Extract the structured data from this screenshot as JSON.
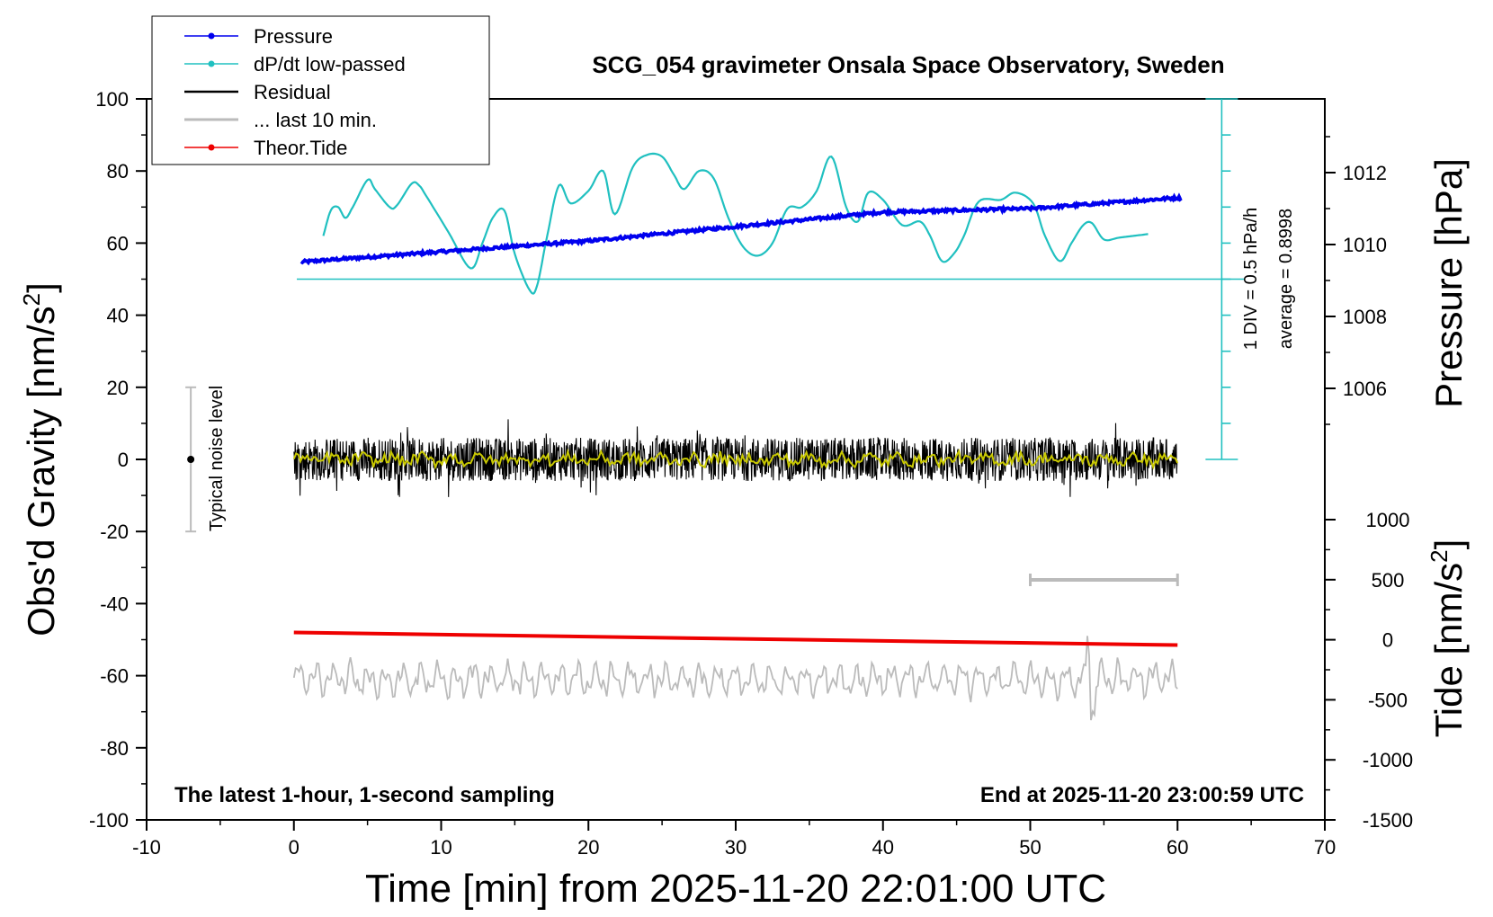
{
  "chart_data": {
    "type": "line",
    "title": "SCG_054 gravimeter Onsala Space Observatory, Sweden",
    "xlabel": "Time [min] from 2025-11-20 22:01:00 UTC",
    "ylabel_main": "Obs'd Gravity [nm/s",
    "ylabel_main_sup": "2",
    "ylabel_main_end": "]",
    "ylabel_pressure": "Pressure [hPa]",
    "ylabel_tide": "Tide [nm/s",
    "ylabel_tide_sup": "2",
    "ylabel_tide_end": "]",
    "xlim": [
      -10,
      70
    ],
    "ylim": [
      -100,
      100
    ],
    "pressure_ylim": [
      1004,
      1014
    ],
    "tide_ylim": [
      -1500,
      1000
    ],
    "x_ticks": [
      "-10",
      "0",
      "10",
      "20",
      "30",
      "40",
      "50",
      "60",
      "70"
    ],
    "y_ticks": [
      "-100",
      "-80",
      "-60",
      "-40",
      "-20",
      "0",
      "20",
      "40",
      "60",
      "80",
      "100"
    ],
    "pressure_ticks": [
      "1006",
      "1008",
      "1010",
      "1012"
    ],
    "tide_ticks": [
      "-1500",
      "-1000",
      "-500",
      "0",
      "500",
      "1000"
    ],
    "legend": [
      {
        "label": "Pressure",
        "color": "#0000ee",
        "marker": true
      },
      {
        "label": "dP/dt low-passed",
        "color": "#20c0c0",
        "marker": true
      },
      {
        "label": "Residual",
        "color": "#000000",
        "marker": false
      },
      {
        "label": "... last 10 min.",
        "color": "#bbbbbb",
        "marker": false
      },
      {
        "label": "Theor.Tide",
        "color": "#ee0000",
        "marker": true
      }
    ],
    "annotations": {
      "bottom_left": "The latest 1-hour, 1-second sampling",
      "bottom_right": "End at 2025-11-20 23:00:59 UTC",
      "noise": "Typical noise level",
      "dpdt_scale": "1 DIV = 0.5 hPa/h",
      "dpdt_average": "average = 0.8998"
    },
    "noise_bar": {
      "x": -7,
      "center": 0,
      "low": -20,
      "high": 20
    },
    "last10_bar": {
      "start": 50,
      "end": 60
    },
    "series": [
      {
        "name": "Pressure",
        "color": "#0000ee",
        "axis": "pressure",
        "x": [
          0,
          10,
          20,
          30,
          40,
          50,
          60
        ],
        "values": [
          1009.5,
          1009.8,
          1010.1,
          1010.5,
          1010.9,
          1011.0,
          1011.3
        ]
      },
      {
        "name": "dP/dt low-passed",
        "color": "#20c0c0",
        "axis": "main",
        "x": [
          2,
          2.5,
          3,
          3.5,
          4,
          5,
          5.5,
          6.5,
          7,
          8,
          8.5,
          9,
          10.5,
          12,
          12.8,
          13.5,
          14.3,
          15,
          16,
          16.5,
          17.2,
          18,
          18.8,
          20,
          21,
          21.8,
          23,
          24,
          25,
          25.8,
          26.5,
          27.5,
          28.5,
          29.5,
          30.5,
          31.5,
          32.5,
          33.5,
          34.5,
          35.5,
          36.5,
          37.5,
          38.3,
          39,
          40,
          41.3,
          42.5,
          43.2,
          44,
          44.8,
          45.5,
          46.5,
          48,
          49,
          50.2,
          51,
          52,
          52.8,
          53.6,
          54.2,
          55,
          56,
          57,
          58
        ],
        "values": [
          62,
          69,
          70,
          67,
          70,
          77.5,
          75,
          70,
          70.5,
          76.5,
          76,
          73,
          63,
          53,
          60,
          67,
          69,
          57,
          47,
          48,
          62,
          76,
          71,
          74.5,
          80,
          68,
          81,
          84.5,
          84,
          79,
          75,
          80,
          78,
          67,
          59,
          56.5,
          60,
          69.5,
          70,
          74.5,
          84,
          70,
          66,
          74,
          72,
          65,
          66,
          62,
          55,
          57,
          62,
          71.5,
          72,
          74,
          71,
          62,
          55,
          60,
          65,
          65.5,
          61,
          61.5,
          62,
          62.5
        ]
      },
      {
        "name": "Residual",
        "color": "#000000",
        "axis": "main",
        "x_range": [
          0,
          60
        ],
        "values": [
          0
        ],
        "note": "1-second residual noise around 0 nm/s2, roughly +/-10"
      },
      {
        "name": "Residual smoothed",
        "color": "#c8c800",
        "axis": "main",
        "x_range": [
          0,
          60
        ],
        "values": [
          0
        ]
      },
      {
        "name": "Theor.Tide",
        "color": "#ee0000",
        "axis": "main",
        "x": [
          0,
          60
        ],
        "values": [
          -48,
          -51.5
        ]
      },
      {
        "name": "... last 10 min.",
        "color": "#bbbbbb",
        "axis": "main",
        "x_range": [
          0,
          60
        ],
        "values": [
          -61
        ],
        "note": "oscillating about -61 nm/s2, amplitude about +/-6"
      }
    ],
    "dpdt_baseline": 50
  }
}
